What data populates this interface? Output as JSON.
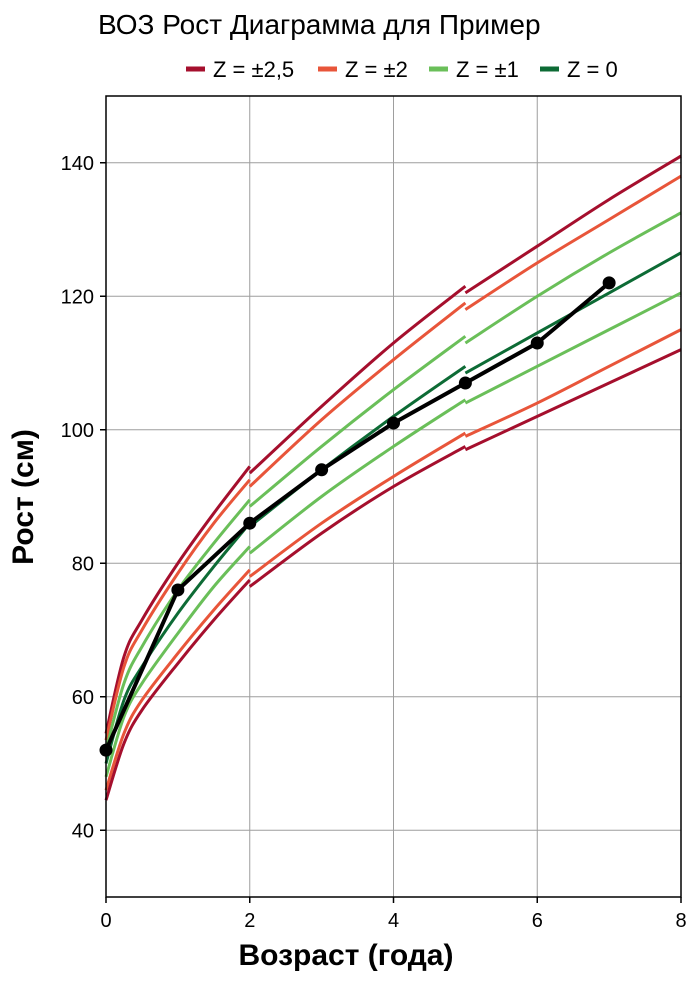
{
  "chart_data": {
    "type": "line",
    "title": "ВОЗ Рост Диаграмма для Пример",
    "xlabel": "Возраст (года)",
    "ylabel": "Рост (см)",
    "xlim": [
      0,
      8
    ],
    "ylim": [
      30,
      150
    ],
    "xticks": [
      0,
      2,
      4,
      6,
      8
    ],
    "yticks": [
      40,
      60,
      80,
      100,
      120,
      140
    ],
    "xtick_labels": [
      "0",
      "2",
      "4",
      "6",
      "8"
    ],
    "ytick_labels": [
      "40",
      "60",
      "80",
      "100",
      "120",
      "140"
    ],
    "grid": true,
    "legend_position": "top",
    "legend": [
      {
        "label": "Z = ±2,5",
        "color": "#a50f2d"
      },
      {
        "label": "Z = ±2",
        "color": "#e8553a"
      },
      {
        "label": "Z = ±1",
        "color": "#6abf59"
      },
      {
        "label": "Z = 0",
        "color": "#0d6b35"
      }
    ],
    "reference_curves": [
      {
        "z": 2.5,
        "color": "#a50f2d",
        "segments": [
          {
            "x": [
              0,
              0.25,
              0.5,
              1,
              1.5,
              2
            ],
            "y": [
              54.5,
              66,
              71.5,
              80,
              87.5,
              94.5
            ]
          },
          {
            "x": [
              2,
              3,
              4,
              5
            ],
            "y": [
              93.5,
              103.5,
              113,
              121.5
            ]
          },
          {
            "x": [
              5,
              6,
              7,
              8
            ],
            "y": [
              120.5,
              127.5,
              134.5,
              141
            ]
          }
        ]
      },
      {
        "z": 2,
        "color": "#e8553a",
        "segments": [
          {
            "x": [
              0,
              0.25,
              0.5,
              1,
              1.5,
              2
            ],
            "y": [
              53.5,
              64.5,
              70,
              78.5,
              86,
              92.5
            ]
          },
          {
            "x": [
              2,
              3,
              4,
              5
            ],
            "y": [
              91.5,
              101.5,
              110.5,
              119
            ]
          },
          {
            "x": [
              5,
              6,
              7,
              8
            ],
            "y": [
              118,
              125,
              131.5,
              138
            ]
          }
        ]
      },
      {
        "z": 1,
        "color": "#6abf59",
        "segments": [
          {
            "x": [
              0,
              0.25,
              0.5,
              1,
              1.5,
              2
            ],
            "y": [
              52,
              62,
              67.5,
              76,
              83,
              89.5
            ]
          },
          {
            "x": [
              2,
              3,
              4,
              5
            ],
            "y": [
              88.5,
              97.5,
              106,
              114
            ]
          },
          {
            "x": [
              5,
              6,
              7,
              8
            ],
            "y": [
              113,
              120,
              126.5,
              132.5
            ]
          }
        ]
      },
      {
        "z": 0,
        "color": "#0d6b35",
        "segments": [
          {
            "x": [
              0,
              0.25,
              0.5,
              1,
              1.5,
              2
            ],
            "y": [
              50,
              59.5,
              64.5,
              72.5,
              79.5,
              86
            ]
          },
          {
            "x": [
              2,
              3,
              4,
              5
            ],
            "y": [
              85.5,
              94,
              102,
              109.5
            ]
          },
          {
            "x": [
              5,
              6,
              7,
              8
            ],
            "y": [
              108.5,
              114.5,
              120.5,
              126.5
            ]
          }
        ]
      },
      {
        "z": -1,
        "color": "#6abf59",
        "segments": [
          {
            "x": [
              0,
              0.25,
              0.5,
              1,
              1.5,
              2
            ],
            "y": [
              48,
              57,
              62,
              69.5,
              76.5,
              82.5
            ]
          },
          {
            "x": [
              2,
              3,
              4,
              5
            ],
            "y": [
              81.5,
              90,
              97.5,
              104.5
            ]
          },
          {
            "x": [
              5,
              6,
              7,
              8
            ],
            "y": [
              104,
              109.5,
              115,
              120.5
            ]
          }
        ]
      },
      {
        "z": -2,
        "color": "#e8553a",
        "segments": [
          {
            "x": [
              0,
              0.25,
              0.5,
              1,
              1.5,
              2
            ],
            "y": [
              46,
              54.5,
              59.5,
              66.5,
              73,
              79
            ]
          },
          {
            "x": [
              2,
              3,
              4,
              5
            ],
            "y": [
              78,
              86,
              93,
              99.5
            ]
          },
          {
            "x": [
              5,
              6,
              7,
              8
            ],
            "y": [
              99,
              104,
              109.5,
              115
            ]
          }
        ]
      },
      {
        "z": -2.5,
        "color": "#a50f2d",
        "segments": [
          {
            "x": [
              0,
              0.25,
              0.5,
              1,
              1.5,
              2
            ],
            "y": [
              44.5,
              53,
              58,
              65,
              71.5,
              77.5
            ]
          },
          {
            "x": [
              2,
              3,
              4,
              5
            ],
            "y": [
              76.5,
              84.5,
              91.5,
              97.5
            ]
          },
          {
            "x": [
              5,
              6,
              7,
              8
            ],
            "y": [
              97,
              102,
              107,
              112
            ]
          }
        ]
      }
    ],
    "series": [
      {
        "x": [
          0,
          1,
          2,
          3,
          4,
          5,
          6,
          7
        ],
        "y": [
          52,
          76,
          86,
          94,
          101,
          107,
          113,
          122
        ],
        "color": "#000000"
      }
    ]
  }
}
